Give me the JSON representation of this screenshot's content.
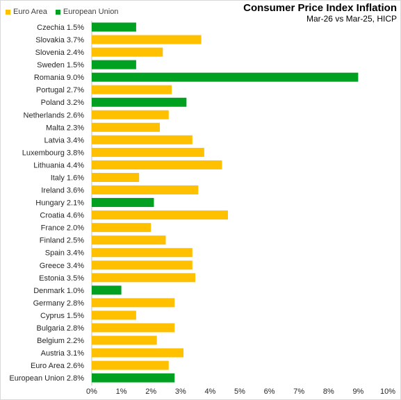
{
  "chart_data": {
    "type": "bar",
    "orientation": "horizontal",
    "title": "Consumer Price Index Inflation",
    "subtitle": "Mar-26 vs Mar-25, HICP",
    "legend": [
      {
        "name": "Euro Area",
        "color": "#FFC000"
      },
      {
        "name": "European Union",
        "color": "#00A020"
      }
    ],
    "legend_position": "top-left",
    "categories": [
      "Czechia 1.5%",
      "Slovakia 3.7%",
      "Slovenia 2.4%",
      "Sweden 1.5%",
      "Romania 9.0%",
      "Portugal 2.7%",
      "Poland 3.2%",
      "Netherlands 2.6%",
      "Malta 2.3%",
      "Latvia 3.4%",
      "Luxembourg 3.8%",
      "Lithuania 4.4%",
      "Italy 1.6%",
      "Ireland 3.6%",
      "Hungary 2.1%",
      "Croatia 4.6%",
      "France 2.0%",
      "Finland 2.5%",
      "Spain 3.4%",
      "Greece 3.4%",
      "Estonia 3.5%",
      "Denmark 1.0%",
      "Germany 2.8%",
      "Cyprus 1.5%",
      "Bulgaria 2.8%",
      "Belgium 2.2%",
      "Austria 3.1%",
      "Euro Area 2.6%",
      "European Union 2.8%"
    ],
    "values": [
      1.5,
      3.7,
      2.4,
      1.5,
      9.0,
      2.7,
      3.2,
      2.6,
      2.3,
      3.4,
      3.8,
      4.4,
      1.6,
      3.6,
      2.1,
      4.6,
      2.0,
      2.5,
      3.4,
      3.4,
      3.5,
      1.0,
      2.8,
      1.5,
      2.8,
      2.2,
      3.1,
      2.6,
      2.8
    ],
    "group": [
      "European Union",
      "Euro Area",
      "Euro Area",
      "European Union",
      "European Union",
      "Euro Area",
      "European Union",
      "Euro Area",
      "Euro Area",
      "Euro Area",
      "Euro Area",
      "Euro Area",
      "Euro Area",
      "Euro Area",
      "European Union",
      "Euro Area",
      "Euro Area",
      "Euro Area",
      "Euro Area",
      "Euro Area",
      "Euro Area",
      "European Union",
      "Euro Area",
      "Euro Area",
      "Euro Area",
      "Euro Area",
      "Euro Area",
      "Euro Area",
      "European Union"
    ],
    "xlim": [
      0,
      10
    ],
    "xticks": [
      "0%",
      "1%",
      "2%",
      "3%",
      "4%",
      "5%",
      "6%",
      "7%",
      "8%",
      "9%",
      "10%"
    ],
    "grid": false
  }
}
